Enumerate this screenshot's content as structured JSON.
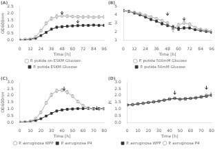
{
  "chart_data": [
    {
      "type": "line",
      "title": "(A)",
      "x_label": "Time [h]",
      "y_label": "OD600nm",
      "xlim": [
        0,
        96
      ],
      "ylim": [
        0,
        2.5
      ],
      "xticks": [
        0,
        {
          "value": 6,
          "label": ""
        },
        12,
        {
          "value": 18,
          "label": ""
        },
        24,
        {
          "value": 30,
          "label": ""
        },
        36,
        {
          "value": 42,
          "label": ""
        },
        48,
        {
          "value": 54,
          "label": ""
        },
        60,
        {
          "value": 66,
          "label": ""
        },
        72,
        {
          "value": 78,
          "label": ""
        },
        84,
        {
          "value": 90,
          "label": ""
        },
        96
      ],
      "yticks": [
        {
          "value": 0,
          "label": "0.0"
        },
        0.5,
        {
          "value": 1.0,
          "label": "1.0"
        },
        1.5,
        {
          "value": 2.0,
          "label": "2.0"
        },
        2.5
      ],
      "grid": false,
      "legend": "bottom",
      "series": [
        {
          "name": "P. putida on ESKM Glucose",
          "color": "#aaaaaa",
          "marker": "open circle",
          "line_style": "solid",
          "x": [
            0,
            6,
            12,
            18,
            24,
            30,
            36,
            42,
            48,
            54,
            60,
            66,
            72,
            78,
            84,
            90,
            96
          ],
          "values": [
            0.04,
            0.06,
            0.1,
            0.25,
            0.7,
            1.25,
            1.6,
            1.75,
            1.8,
            1.78,
            1.75,
            1.73,
            1.72,
            1.73,
            1.7,
            1.72,
            1.72
          ],
          "yerr": [
            0.02,
            0.02,
            0.03,
            0.05,
            0.08,
            0.1,
            0.12,
            0.15,
            0.1,
            0.1,
            0.08,
            0.08,
            0.08,
            0.08,
            0.08,
            0.08,
            0.08
          ]
        },
        {
          "name": "P. putida ESKM Glucose",
          "color": "#333333",
          "marker": "filled square",
          "line_style": "solid",
          "x": [
            0,
            6,
            12,
            18,
            24,
            30,
            36,
            42,
            48,
            54,
            60,
            66,
            72,
            78,
            84,
            90,
            96
          ],
          "values": [
            0.04,
            0.05,
            0.08,
            0.15,
            0.35,
            0.58,
            0.82,
            0.96,
            1.0,
            1.03,
            1.06,
            1.08,
            1.1,
            1.1,
            1.12,
            1.1,
            1.1
          ],
          "yerr": [
            0.01,
            0.01,
            0.02,
            0.03,
            0.05,
            0.06,
            0.07,
            0.08,
            0.08,
            0.07,
            0.07,
            0.07,
            0.07,
            0.07,
            0.07,
            0.07,
            0.07
          ]
        }
      ],
      "arrows": [
        {
          "x": 48,
          "y": 2.15
        },
        {
          "x": 66,
          "y": 1.5
        }
      ]
    },
    {
      "type": "line",
      "title": "(B)",
      "x_label": "Time [h]",
      "y_label": "Pi",
      "xlim": [
        0,
        96
      ],
      "ylim": [
        1,
        5
      ],
      "xticks": [
        0,
        {
          "value": 6,
          "label": ""
        },
        12,
        {
          "value": 18,
          "label": ""
        },
        24,
        {
          "value": 30,
          "label": ""
        },
        36,
        {
          "value": 42,
          "label": ""
        },
        48,
        {
          "value": 54,
          "label": ""
        },
        60,
        {
          "value": 66,
          "label": ""
        },
        72,
        {
          "value": 78,
          "label": ""
        },
        84,
        {
          "value": 90,
          "label": ""
        },
        96
      ],
      "yticks": [
        1,
        2,
        3,
        4,
        5
      ],
      "grid": false,
      "legend": "bottom",
      "series": [
        {
          "name": "P. putida 500mM Glucose",
          "color": "#aaaaaa",
          "marker": "open circle",
          "line_style": "solid",
          "x": [
            0,
            6,
            12,
            18,
            24,
            30,
            36,
            42,
            48,
            54,
            60,
            66,
            72,
            78,
            84,
            90,
            96
          ],
          "values": [
            4.5,
            4.4,
            4.3,
            4.15,
            3.95,
            3.75,
            3.55,
            3.3,
            3.0,
            2.35,
            2.8,
            3.05,
            2.9,
            2.5,
            2.3,
            2.2,
            2.1
          ],
          "yerr": [
            0.1,
            0.1,
            0.1,
            0.1,
            0.1,
            0.1,
            0.12,
            0.15,
            0.2,
            0.35,
            0.2,
            0.15,
            0.15,
            0.12,
            0.1,
            0.1,
            0.1
          ]
        },
        {
          "name": "P. putida 50mM Glucose",
          "color": "#333333",
          "marker": "filled square",
          "line_style": "solid",
          "x": [
            0,
            6,
            12,
            18,
            24,
            30,
            36,
            42,
            48,
            54,
            60,
            66,
            72,
            78,
            84,
            90,
            96
          ],
          "values": [
            4.5,
            4.4,
            4.2,
            4.0,
            3.75,
            3.45,
            3.25,
            2.95,
            2.75,
            2.55,
            2.35,
            2.45,
            2.45,
            2.25,
            2.15,
            2.05,
            1.95
          ],
          "yerr": [
            0.1,
            0.1,
            0.1,
            0.1,
            0.12,
            0.12,
            0.12,
            0.15,
            0.15,
            0.2,
            0.2,
            0.15,
            0.12,
            0.1,
            0.1,
            0.1,
            0.1
          ]
        }
      ],
      "arrows": [
        {
          "x": 48,
          "y": 4.3
        },
        {
          "x": 66,
          "y": 3.7
        }
      ]
    },
    {
      "type": "line",
      "title": "(C)",
      "x_label": "Time [h]",
      "y_label": "OD600nm",
      "xlim": [
        0,
        80
      ],
      "ylim": [
        0,
        3.0
      ],
      "xticks": [
        0,
        {
          "value": 5,
          "label": ""
        },
        10,
        {
          "value": 15,
          "label": ""
        },
        20,
        {
          "value": 25,
          "label": ""
        },
        30,
        {
          "value": 35,
          "label": ""
        },
        40,
        {
          "value": 45,
          "label": ""
        },
        50,
        {
          "value": 55,
          "label": ""
        },
        60,
        {
          "value": 65,
          "label": ""
        },
        70,
        {
          "value": 75,
          "label": ""
        },
        80
      ],
      "yticks": [
        {
          "value": 0,
          "label": "0.0"
        },
        0.5,
        {
          "value": 1.0,
          "label": "1.0"
        },
        1.5,
        {
          "value": 2.0,
          "label": "2.0"
        },
        2.5,
        {
          "value": 3.0,
          "label": "3.0"
        }
      ],
      "grid": false,
      "legend": "bottom",
      "series": [
        {
          "name": "P. aeruginosa WPP",
          "color": "#aaaaaa",
          "marker": "open circle",
          "line_style": "solid",
          "x": [
            0,
            5,
            10,
            15,
            20,
            25,
            30,
            35,
            40,
            45,
            50,
            55,
            60,
            65,
            70,
            75,
            80
          ],
          "values": [
            0.03,
            0.05,
            0.1,
            0.28,
            0.75,
            1.45,
            2.05,
            2.35,
            2.4,
            2.25,
            1.95,
            1.55,
            1.25,
            1.05,
            1.0,
            1.0,
            1.0
          ],
          "yerr": [
            0.01,
            0.01,
            0.02,
            0.04,
            0.08,
            0.1,
            0.12,
            0.12,
            0.1,
            0.12,
            0.1,
            0.1,
            0.08,
            0.08,
            0.07,
            0.07,
            0.07
          ]
        },
        {
          "name": "P. aeruginosa P4",
          "color": "#333333",
          "marker": "filled square",
          "line_style": "solid",
          "x": [
            0,
            5,
            10,
            15,
            20,
            25,
            30,
            35,
            40,
            45,
            50,
            55,
            60,
            65,
            70,
            75,
            80
          ],
          "values": [
            0.03,
            0.05,
            0.08,
            0.15,
            0.28,
            0.48,
            0.68,
            0.85,
            0.93,
            0.98,
            1.0,
            1.03,
            1.03,
            1.05,
            1.03,
            1.03,
            1.03
          ],
          "yerr": [
            0.01,
            0.01,
            0.02,
            0.03,
            0.04,
            0.05,
            0.06,
            0.07,
            0.07,
            0.07,
            0.07,
            0.07,
            0.07,
            0.07,
            0.07,
            0.07,
            0.07
          ]
        }
      ],
      "arrows": [
        {
          "x": 42,
          "y": 2.65
        },
        {
          "x": 73,
          "y": 1.2
        }
      ]
    },
    {
      "type": "line",
      "title": "(D)",
      "x_label": "Time [h]",
      "y_label": "Pi",
      "xlim": [
        0,
        80
      ],
      "ylim": [
        0,
        3.0
      ],
      "xticks": [
        0,
        {
          "value": 5,
          "label": ""
        },
        10,
        {
          "value": 15,
          "label": ""
        },
        20,
        {
          "value": 25,
          "label": ""
        },
        30,
        {
          "value": 35,
          "label": ""
        },
        40,
        {
          "value": 45,
          "label": ""
        },
        50,
        {
          "value": 55,
          "label": ""
        },
        60,
        {
          "value": 65,
          "label": ""
        },
        70,
        {
          "value": 75,
          "label": ""
        },
        80
      ],
      "yticks": [
        {
          "value": 0,
          "label": "0.0"
        },
        0.5,
        {
          "value": 1.0,
          "label": "1.0"
        },
        1.5,
        {
          "value": 2.0,
          "label": "2.0"
        },
        2.5,
        {
          "value": 3.0,
          "label": "3.0"
        }
      ],
      "grid": false,
      "legend": "bottom",
      "series": [
        {
          "name": "P. aeruginosa WPP",
          "color": "#333333",
          "marker": "filled square",
          "line_style": "solid",
          "x": [
            0,
            5,
            10,
            15,
            20,
            25,
            30,
            35,
            40,
            45,
            50,
            55,
            60,
            65,
            70,
            75,
            80
          ],
          "values": [
            1.3,
            1.32,
            1.38,
            1.42,
            1.48,
            1.52,
            1.58,
            1.65,
            1.72,
            1.78,
            1.72,
            1.75,
            1.78,
            1.82,
            1.88,
            1.95,
            2.02
          ],
          "yerr": [
            0.04,
            0.04,
            0.04,
            0.04,
            0.05,
            0.05,
            0.05,
            0.06,
            0.06,
            0.07,
            0.07,
            0.07,
            0.07,
            0.07,
            0.07,
            0.08,
            0.08
          ]
        },
        {
          "name": "P. aeruginosa P4",
          "color": "#aaaaaa",
          "marker": "open circle",
          "line_style": "solid",
          "x": [
            0,
            5,
            10,
            15,
            20,
            25,
            30,
            35,
            40,
            45,
            50,
            55,
            60,
            65,
            70,
            75,
            80
          ],
          "values": [
            1.3,
            1.32,
            1.38,
            1.42,
            1.48,
            1.52,
            1.6,
            1.68,
            1.75,
            1.8,
            1.73,
            1.78,
            1.8,
            1.85,
            1.92,
            2.02,
            2.12
          ],
          "yerr": [
            0.04,
            0.04,
            0.04,
            0.04,
            0.05,
            0.05,
            0.06,
            0.06,
            0.07,
            0.08,
            0.07,
            0.07,
            0.07,
            0.07,
            0.08,
            0.08,
            0.1
          ]
        }
      ],
      "arrows": [
        {
          "x": 45,
          "y": 2.35
        },
        {
          "x": 75,
          "y": 2.72
        }
      ]
    }
  ]
}
